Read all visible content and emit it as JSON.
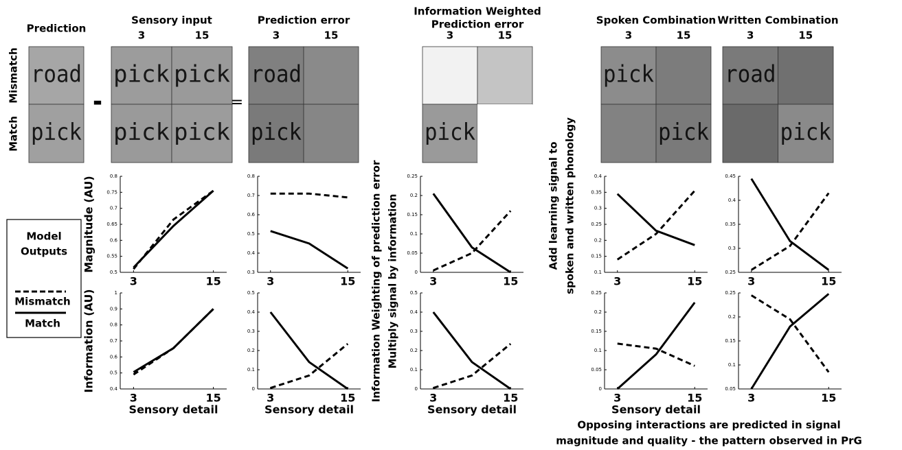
{
  "figure": {
    "panels": [
      {
        "title": [
          "Prediction"
        ],
        "rows": [
          [
            {
              "word": "road",
              "color": "#a6a6a6"
            }
          ],
          [
            {
              "word": "pick",
              "color": "#a0a0a0"
            }
          ]
        ]
      },
      {
        "title": [
          "Sensory input"
        ],
        "columns": [
          "3",
          "15"
        ],
        "rows": [
          [
            {
              "word": "pick",
              "color": "#9c9c9c"
            },
            {
              "word": "pick",
              "color": "#9a9a9a"
            }
          ],
          [
            {
              "word": "pick",
              "color": "#9a9a9a"
            },
            {
              "word": "pick",
              "color": "#9c9c9c"
            }
          ]
        ]
      },
      {
        "title": [
          "Prediction error"
        ],
        "columns": [
          "3",
          "15"
        ],
        "rows": [
          [
            {
              "word": "road",
              "color": "#808080"
            },
            {
              "color": "#8a8a8a"
            }
          ],
          [
            {
              "word": "pick",
              "color": "#7a7a7a"
            },
            {
              "color": "#868686"
            }
          ]
        ]
      },
      {
        "title": [
          "Information Weighted",
          "Prediction error"
        ],
        "columns": [
          "3",
          "15"
        ],
        "rows": [
          [
            {
              "color": "#f2f2f2"
            },
            {
              "color": "#c4c4c4"
            }
          ],
          [
            {
              "word": "pick",
              "color": "#9a9a9a"
            },
            {
              "color": "#ffffff"
            }
          ]
        ]
      },
      {
        "title": [
          "Spoken Combination"
        ],
        "columns": [
          "3",
          "15"
        ],
        "rows": [
          [
            {
              "word": "pick",
              "color": "#8c8c8c"
            },
            {
              "color": "#7c7c7c"
            }
          ],
          [
            {
              "color": "#828282"
            },
            {
              "word": "pick",
              "color": "#7a7a7a"
            }
          ]
        ]
      },
      {
        "title": [
          "Written Combination"
        ],
        "columns": [
          "3",
          "15"
        ],
        "rows": [
          [
            {
              "word": "road",
              "color": "#7a7a7a"
            },
            {
              "color": "#707070"
            }
          ],
          [
            {
              "color": "#6a6a6a"
            },
            {
              "word": "pick",
              "color": "#8a8a8a"
            }
          ]
        ]
      }
    ],
    "row_labels": [
      "Mismatch",
      "Match"
    ],
    "operators": [
      "-",
      "="
    ],
    "legend_title": [
      "Model",
      "Outputs"
    ],
    "side_labels": [
      [
        "Information Weighting of prediction error",
        "Multiply signal by information"
      ],
      [
        "Add learning signal to",
        "spoken and written phonology"
      ]
    ],
    "caption": [
      "Opposing interactions are predicted in signal",
      "magnitude and quality - the pattern observed in PrG"
    ]
  },
  "chart_data": [
    {
      "type": "line",
      "ylabel": "Magnitude (AU)",
      "x": [
        3,
        9,
        15
      ],
      "xlim": [
        1,
        17
      ],
      "xticks": [
        3,
        15
      ],
      "ylim": [
        0.5,
        0.8
      ],
      "yticks": [
        0.5,
        0.55,
        0.6,
        0.65,
        0.7,
        0.75,
        0.8
      ],
      "series": [
        {
          "name": "Mismatch",
          "color": "#000000",
          "style": "dashed",
          "values": [
            0.51,
            0.665,
            0.755
          ]
        },
        {
          "name": "Match",
          "color": "#000000",
          "style": "solid",
          "values": [
            0.515,
            0.645,
            0.755
          ]
        }
      ]
    },
    {
      "type": "line",
      "x": [
        3,
        9,
        15
      ],
      "xlim": [
        1,
        17
      ],
      "xticks": [
        3,
        15
      ],
      "ylim": [
        0.3,
        0.8
      ],
      "yticks": [
        0.3,
        0.4,
        0.5,
        0.6,
        0.7,
        0.8
      ],
      "series": [
        {
          "color": "#000000",
          "style": "dashed",
          "values": [
            0.71,
            0.71,
            0.69
          ]
        },
        {
          "color": "#000000",
          "style": "solid",
          "values": [
            0.515,
            0.45,
            0.32
          ]
        }
      ]
    },
    {
      "type": "line",
      "x": [
        3,
        9,
        15
      ],
      "xlim": [
        1,
        17
      ],
      "xticks": [
        3,
        15
      ],
      "ylim": [
        0,
        0.25
      ],
      "yticks": [
        0,
        0.05,
        0.1,
        0.15,
        0.2,
        0.25
      ],
      "series": [
        {
          "color": "#000000",
          "style": "dashed",
          "values": [
            0.005,
            0.05,
            0.16
          ]
        },
        {
          "color": "#000000",
          "style": "solid",
          "values": [
            0.205,
            0.065,
            0.0
          ]
        }
      ]
    },
    {
      "type": "line",
      "x": [
        3,
        9,
        15
      ],
      "xlim": [
        1,
        17
      ],
      "xticks": [
        3,
        15
      ],
      "ylim": [
        0.1,
        0.4
      ],
      "yticks": [
        0.1,
        0.15,
        0.2,
        0.25,
        0.3,
        0.35,
        0.4
      ],
      "series": [
        {
          "color": "#000000",
          "style": "dashed",
          "values": [
            0.14,
            0.22,
            0.355
          ]
        },
        {
          "color": "#000000",
          "style": "solid",
          "values": [
            0.345,
            0.23,
            0.185
          ]
        }
      ]
    },
    {
      "type": "line",
      "x": [
        3,
        9,
        15
      ],
      "xlim": [
        1,
        17
      ],
      "xticks": [
        3,
        15
      ],
      "ylim": [
        0.25,
        0.45
      ],
      "yticks": [
        0.25,
        0.3,
        0.35,
        0.4,
        0.45
      ],
      "series": [
        {
          "color": "#000000",
          "style": "dashed",
          "values": [
            0.255,
            0.305,
            0.415
          ]
        },
        {
          "color": "#000000",
          "style": "solid",
          "values": [
            0.445,
            0.315,
            0.255
          ]
        }
      ]
    },
    {
      "type": "line",
      "ylabel": "Information (AU)",
      "xlabel": "Sensory detail",
      "x": [
        3,
        9,
        15
      ],
      "xlim": [
        1,
        17
      ],
      "xticks": [
        3,
        15
      ],
      "ylim": [
        0.4,
        1
      ],
      "yticks": [
        0.4,
        0.5,
        0.6,
        0.7,
        0.8,
        0.9,
        1
      ],
      "series": [
        {
          "color": "#000000",
          "style": "dashed",
          "values": [
            0.49,
            0.655,
            0.9
          ]
        },
        {
          "color": "#000000",
          "style": "solid",
          "values": [
            0.505,
            0.655,
            0.9
          ]
        }
      ]
    },
    {
      "type": "line",
      "xlabel": "Sensory detail",
      "x": [
        3,
        9,
        15
      ],
      "xlim": [
        1,
        17
      ],
      "xticks": [
        3,
        15
      ],
      "ylim": [
        0,
        0.5
      ],
      "yticks": [
        0,
        0.1,
        0.2,
        0.3,
        0.4,
        0.5
      ],
      "series": [
        {
          "color": "#000000",
          "style": "dashed",
          "values": [
            0.005,
            0.07,
            0.235
          ]
        },
        {
          "color": "#000000",
          "style": "solid",
          "values": [
            0.4,
            0.14,
            0.0
          ]
        }
      ]
    },
    {
      "type": "line",
      "xlabel": "Sensory detail",
      "x": [
        3,
        9,
        15
      ],
      "xlim": [
        1,
        17
      ],
      "xticks": [
        3,
        15
      ],
      "ylim": [
        0,
        0.5
      ],
      "yticks": [
        0,
        0.1,
        0.2,
        0.3,
        0.4,
        0.5
      ],
      "series": [
        {
          "color": "#000000",
          "style": "dashed",
          "values": [
            0.005,
            0.07,
            0.235
          ]
        },
        {
          "color": "#000000",
          "style": "solid",
          "values": [
            0.4,
            0.14,
            0.0
          ]
        }
      ]
    },
    {
      "type": "line",
      "xlabel": "Sensory detail",
      "x": [
        3,
        9,
        15
      ],
      "xlim": [
        1,
        17
      ],
      "xticks": [
        3,
        15
      ],
      "ylim": [
        0,
        0.25
      ],
      "yticks": [
        0,
        0.05,
        0.1,
        0.15,
        0.2,
        0.25
      ],
      "series": [
        {
          "color": "#000000",
          "style": "dashed",
          "values": [
            0.118,
            0.105,
            0.06
          ]
        },
        {
          "color": "#000000",
          "style": "solid",
          "values": [
            0.0,
            0.09,
            0.225
          ]
        }
      ]
    },
    {
      "type": "line",
      "x": [
        3,
        9,
        15
      ],
      "xlim": [
        1,
        17
      ],
      "xticks": [
        3,
        15
      ],
      "ylim": [
        0.05,
        0.25
      ],
      "yticks": [
        0.05,
        0.1,
        0.15,
        0.2,
        0.25
      ],
      "series": [
        {
          "color": "#000000",
          "style": "dashed",
          "values": [
            0.245,
            0.195,
            0.085
          ]
        },
        {
          "color": "#000000",
          "style": "solid",
          "values": [
            0.05,
            0.18,
            0.248
          ]
        }
      ]
    }
  ]
}
